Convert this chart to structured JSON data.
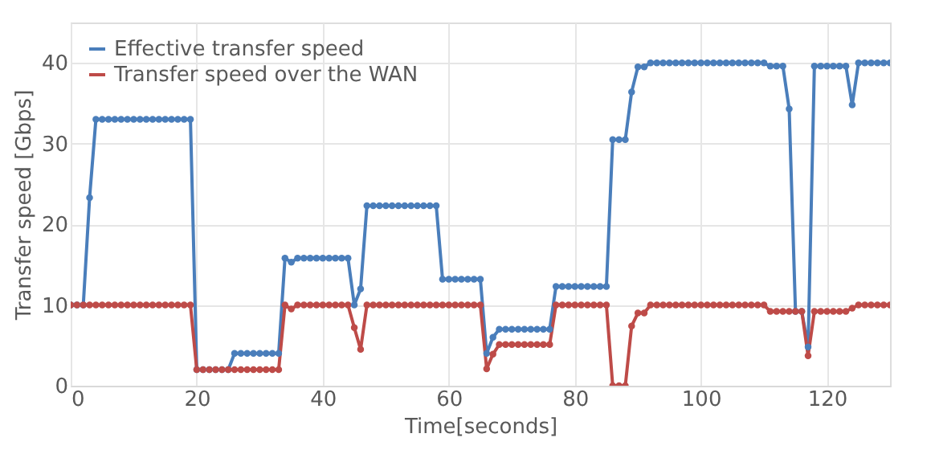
{
  "chart_data": {
    "type": "line",
    "xlabel": "Time[seconds]",
    "ylabel": "Transfer speed [Gbps]",
    "x": [
      0,
      1,
      2,
      3,
      4,
      5,
      6,
      7,
      8,
      9,
      10,
      11,
      12,
      13,
      14,
      15,
      16,
      17,
      18,
      19,
      20,
      21,
      22,
      23,
      24,
      25,
      26,
      27,
      28,
      29,
      30,
      31,
      32,
      33,
      34,
      35,
      36,
      37,
      38,
      39,
      40,
      41,
      42,
      43,
      44,
      45,
      46,
      47,
      48,
      49,
      50,
      51,
      52,
      53,
      54,
      55,
      56,
      57,
      58,
      59,
      60,
      61,
      62,
      63,
      64,
      65,
      66,
      67,
      68,
      69,
      70,
      71,
      72,
      73,
      74,
      75,
      76,
      77,
      78,
      79,
      80,
      81,
      82,
      83,
      84,
      85,
      86,
      87,
      88,
      89,
      90,
      91,
      92,
      93,
      94,
      95,
      96,
      97,
      98,
      99,
      100,
      101,
      102,
      103,
      104,
      105,
      106,
      107,
      108,
      109,
      110,
      111,
      112,
      113,
      114,
      115,
      116,
      117,
      118,
      119,
      120,
      121,
      122,
      123,
      124,
      125,
      126,
      127,
      128,
      129,
      130
    ],
    "series": [
      {
        "name": "Effective transfer speed",
        "color": "#4a7ebb",
        "values": [
          10,
          10,
          10,
          23.3,
          33,
          33,
          33,
          33,
          33,
          33,
          33,
          33,
          33,
          33,
          33,
          33,
          33,
          33,
          33,
          33,
          2,
          2,
          2,
          2,
          2,
          2,
          4,
          4,
          4,
          4,
          4,
          4,
          4,
          4,
          15.8,
          15.3,
          15.8,
          15.8,
          15.8,
          15.8,
          15.8,
          15.8,
          15.8,
          15.8,
          15.8,
          10,
          12,
          22.3,
          22.3,
          22.3,
          22.3,
          22.3,
          22.3,
          22.3,
          22.3,
          22.3,
          22.3,
          22.3,
          22.3,
          13.2,
          13.2,
          13.2,
          13.2,
          13.2,
          13.2,
          13.2,
          4,
          6,
          7,
          7,
          7,
          7,
          7,
          7,
          7,
          7,
          7,
          12.3,
          12.3,
          12.3,
          12.3,
          12.3,
          12.3,
          12.3,
          12.3,
          12.3,
          30.5,
          30.5,
          30.5,
          36.4,
          39.5,
          39.5,
          40,
          40,
          40,
          40,
          40,
          40,
          40,
          40,
          40,
          40,
          40,
          40,
          40,
          40,
          40,
          40,
          40,
          40,
          40,
          39.6,
          39.6,
          39.6,
          34.3,
          9.2,
          9.2,
          4.8,
          39.6,
          39.6,
          39.6,
          39.6,
          39.6,
          39.6,
          34.8,
          40,
          40,
          40,
          40,
          40,
          40
        ]
      },
      {
        "name": "Transfer speed over the WAN",
        "color": "#be4b48",
        "values": [
          10,
          10,
          10,
          10,
          10,
          10,
          10,
          10,
          10,
          10,
          10,
          10,
          10,
          10,
          10,
          10,
          10,
          10,
          10,
          10,
          2,
          2,
          2,
          2,
          2,
          2,
          2,
          2,
          2,
          2,
          2,
          2,
          2,
          2,
          10,
          9.5,
          10,
          10,
          10,
          10,
          10,
          10,
          10,
          10,
          10,
          7.2,
          4.5,
          10,
          10,
          10,
          10,
          10,
          10,
          10,
          10,
          10,
          10,
          10,
          10,
          10,
          10,
          10,
          10,
          10,
          10,
          10,
          2.1,
          3.9,
          5.1,
          5.1,
          5.1,
          5.1,
          5.1,
          5.1,
          5.1,
          5.1,
          5.1,
          10,
          10,
          10,
          10,
          10,
          10,
          10,
          10,
          10,
          0,
          0,
          0,
          7.4,
          9,
          9,
          10,
          10,
          10,
          10,
          10,
          10,
          10,
          10,
          10,
          10,
          10,
          10,
          10,
          10,
          10,
          10,
          10,
          10,
          10,
          9.2,
          9.2,
          9.2,
          9.2,
          9.2,
          9.2,
          3.7,
          9.2,
          9.2,
          9.2,
          9.2,
          9.2,
          9.2,
          9.6,
          10,
          10,
          10,
          10,
          10,
          10
        ]
      }
    ],
    "xlim": [
      0,
      130
    ],
    "xticks": [
      0,
      20,
      40,
      60,
      80,
      100,
      120
    ],
    "ylim": [
      0,
      45
    ],
    "yticks": [
      0,
      10,
      20,
      30,
      40
    ],
    "grid": true,
    "legend": "top left",
    "marker": "circle",
    "line_style": "solid"
  }
}
